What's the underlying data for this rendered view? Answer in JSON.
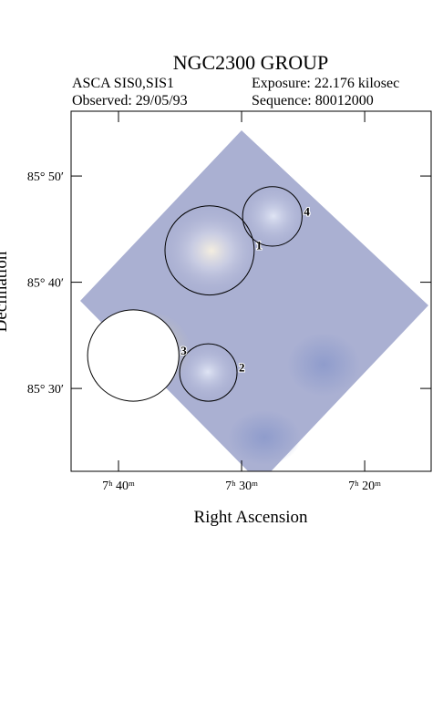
{
  "chart_data": {
    "type": "sky-image",
    "title": "NGC2300 GROUP",
    "instrument": "ASCA SIS0,SIS1",
    "exposure": "Exposure: 22.176 kilosec",
    "observed": "Observed: 29/05/93",
    "sequence": "Sequence: 80012000",
    "xlabel": "Right Ascension",
    "ylabel": "Declination",
    "xlim": [
      463.85,
      434.6
    ],
    "ylim": [
      5122.2,
      5156.1
    ],
    "xticks": [
      {
        "value": 460,
        "label": "7ʰ 40ᵐ"
      },
      {
        "value": 450,
        "label": "7ʰ 30ᵐ"
      },
      {
        "value": 440,
        "label": "7ʰ 20ᵐ"
      }
    ],
    "yticks": [
      {
        "value": 5150,
        "label": "85° 50′"
      },
      {
        "value": 5140,
        "label": "85° 40′"
      },
      {
        "value": 5130,
        "label": "85° 30′"
      }
    ],
    "regions": [
      {
        "label": "1",
        "x": 452.6,
        "y": 5143.0,
        "r": 4.2
      },
      {
        "label": "2",
        "x": 452.7,
        "y": 5131.5,
        "r": 2.7
      },
      {
        "label": "3",
        "x": 458.8,
        "y": 5133.1,
        "r": 4.3
      },
      {
        "label": "4",
        "x": 447.5,
        "y": 5146.2,
        "r": 2.8
      }
    ]
  }
}
